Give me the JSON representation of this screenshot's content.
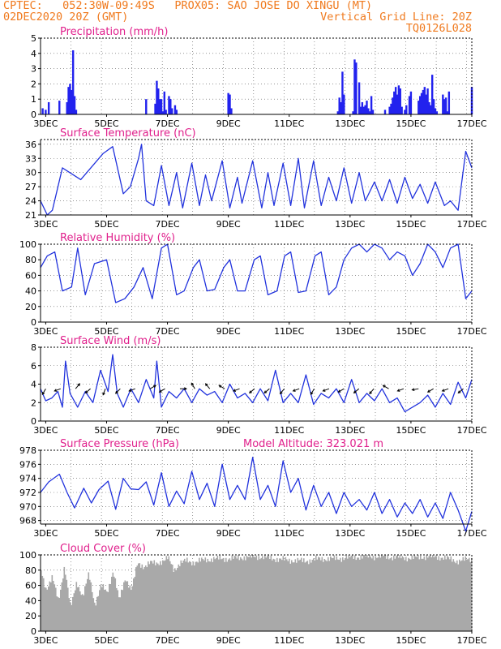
{
  "header": {
    "line1": "CPTEC:   052:30W-09:49S   PROX05: SAO JOSE DO XINGU (MT)",
    "date": "02DEC2020 20Z (GMT)",
    "grid_note": "Vertical Grid Line: 20Z",
    "code": "TQ0126L028"
  },
  "colors": {
    "header": "#f07a1e",
    "title": "#e0208c",
    "line": "#2233dd",
    "bar": "#2222ee",
    "cloud": "#a9a9a9",
    "arrow": "#000000"
  },
  "x_ticks": [
    "3DEC",
    "5DEC",
    "7DEC",
    "9DEC",
    "11DEC",
    "13DEC",
    "15DEC",
    "17DEC"
  ],
  "model_altitude": "Model Altitude: 323.021 m",
  "chart_data": [
    {
      "type": "bar",
      "title": "Precipitation (mm/h)",
      "ylim": [
        0,
        5
      ],
      "yticks": [
        0,
        1,
        2,
        3,
        4,
        5
      ],
      "x_start_day": 2.83,
      "x_end_day": 17.0,
      "x": [
        2.9,
        3.0,
        3.1,
        3.45,
        3.7,
        3.75,
        3.8,
        3.85,
        3.9,
        3.95,
        4.0,
        6.3,
        6.6,
        6.65,
        6.7,
        6.75,
        6.8,
        6.85,
        6.9,
        6.95,
        7.05,
        7.1,
        7.15,
        7.25,
        7.3,
        9.0,
        9.05,
        9.1,
        12.6,
        12.65,
        12.7,
        12.75,
        12.8,
        13.1,
        13.15,
        13.2,
        13.3,
        13.35,
        13.4,
        13.45,
        13.5,
        13.55,
        13.6,
        13.65,
        13.7,
        13.75,
        14.15,
        14.3,
        14.35,
        14.4,
        14.45,
        14.5,
        14.55,
        14.6,
        14.65,
        14.7,
        14.8,
        14.85,
        14.95,
        15.0,
        15.25,
        15.3,
        15.35,
        15.4,
        15.45,
        15.5,
        15.55,
        15.6,
        15.65,
        15.7,
        15.75,
        15.8,
        15.85,
        16.05,
        16.1,
        16.15,
        16.2,
        16.25,
        17.0
      ],
      "values": [
        0.4,
        0.3,
        0.8,
        0.9,
        0.8,
        1.8,
        2.0,
        1.6,
        4.2,
        1.2,
        0.3,
        1.0,
        0.7,
        2.2,
        1.7,
        1.0,
        1.0,
        0.2,
        1.5,
        0.3,
        1.2,
        1.0,
        0.4,
        0.6,
        0.3,
        1.4,
        1.3,
        0.4,
        0.2,
        1.1,
        0.8,
        2.8,
        1.3,
        0.2,
        3.6,
        3.4,
        2.1,
        0.5,
        0.8,
        0.5,
        0.6,
        0.9,
        0.4,
        0.2,
        1.2,
        0.3,
        0.3,
        0.5,
        0.7,
        1.1,
        1.5,
        1.8,
        1.3,
        1.9,
        1.7,
        0.5,
        0.3,
        0.6,
        1.2,
        1.5,
        0.9,
        1.2,
        1.4,
        1.6,
        1.8,
        1.3,
        1.7,
        0.8,
        0.6,
        2.6,
        1.0,
        0.4,
        0.2,
        1.3,
        1.0,
        1.1,
        0.2,
        1.5,
        1.8
      ]
    },
    {
      "type": "line",
      "title": "Surface Temperature (nC)",
      "ylim": [
        21,
        37
      ],
      "yticks": [
        21,
        24,
        27,
        30,
        33,
        36
      ],
      "x_start_day": 2.83,
      "x_end_day": 17.0,
      "x": [
        2.83,
        3.05,
        3.22,
        3.55,
        4.15,
        4.88,
        5.2,
        5.55,
        5.78,
        6.05,
        6.15,
        6.3,
        6.55,
        6.8,
        7.05,
        7.3,
        7.5,
        7.8,
        8.05,
        8.25,
        8.45,
        8.8,
        9.05,
        9.3,
        9.45,
        9.8,
        10.1,
        10.3,
        10.5,
        10.8,
        11.05,
        11.3,
        11.5,
        11.8,
        12.05,
        12.3,
        12.55,
        12.8,
        13.05,
        13.3,
        13.5,
        13.8,
        14.05,
        14.3,
        14.55,
        14.8,
        15.05,
        15.3,
        15.55,
        15.8,
        16.1,
        16.3,
        16.55,
        16.8,
        17.0
      ],
      "values": [
        24,
        21,
        22,
        31,
        28.5,
        34,
        35.5,
        25.5,
        27,
        33,
        36,
        24,
        23,
        31.5,
        23,
        30,
        22.5,
        32,
        23,
        29.5,
        24,
        32.5,
        22.5,
        29,
        23.5,
        32.5,
        22.5,
        30,
        23,
        32,
        23,
        33,
        22.5,
        32.5,
        23,
        29,
        24,
        31,
        23.5,
        30,
        24,
        28,
        24,
        28.5,
        23.5,
        29,
        24.5,
        27.5,
        23.5,
        28,
        23,
        24,
        22,
        34.5,
        31
      ]
    },
    {
      "type": "line",
      "title": "Relative Humidity (%)",
      "ylim": [
        0,
        100
      ],
      "yticks": [
        0,
        20,
        40,
        60,
        80,
        100
      ],
      "x_start_day": 2.83,
      "x_end_day": 17.0,
      "x": [
        2.83,
        3.05,
        3.3,
        3.55,
        3.85,
        4.05,
        4.3,
        4.6,
        5.0,
        5.3,
        5.6,
        5.9,
        6.2,
        6.5,
        6.8,
        7.0,
        7.3,
        7.55,
        7.85,
        8.05,
        8.3,
        8.55,
        8.85,
        9.05,
        9.3,
        9.55,
        9.85,
        10.05,
        10.3,
        10.6,
        10.85,
        11.05,
        11.3,
        11.55,
        11.85,
        12.05,
        12.3,
        12.55,
        12.8,
        13.05,
        13.3,
        13.55,
        13.8,
        14.05,
        14.3,
        14.55,
        14.8,
        15.05,
        15.3,
        15.55,
        15.8,
        16.05,
        16.3,
        16.55,
        16.8,
        17.0
      ],
      "values": [
        70,
        85,
        90,
        40,
        45,
        95,
        35,
        75,
        80,
        25,
        30,
        45,
        70,
        30,
        95,
        100,
        35,
        40,
        70,
        80,
        40,
        42,
        70,
        80,
        40,
        40,
        80,
        85,
        35,
        40,
        85,
        90,
        38,
        40,
        85,
        90,
        35,
        45,
        80,
        95,
        100,
        90,
        100,
        95,
        80,
        90,
        85,
        60,
        75,
        100,
        90,
        70,
        95,
        100,
        30,
        40
      ]
    },
    {
      "type": "line",
      "title": "Surface Wind (m/s)",
      "ylim": [
        0,
        8
      ],
      "yticks": [
        0,
        2,
        4,
        6,
        8
      ],
      "x_start_day": 2.83,
      "x_end_day": 17.0,
      "x": [
        2.83,
        3.0,
        3.2,
        3.4,
        3.55,
        3.65,
        3.8,
        4.05,
        4.3,
        4.55,
        4.8,
        5.05,
        5.2,
        5.35,
        5.55,
        5.8,
        6.05,
        6.3,
        6.55,
        6.65,
        6.8,
        7.05,
        7.3,
        7.55,
        7.8,
        8.05,
        8.3,
        8.55,
        8.8,
        9.05,
        9.3,
        9.55,
        9.8,
        10.05,
        10.3,
        10.55,
        10.8,
        11.05,
        11.3,
        11.55,
        11.8,
        12.05,
        12.3,
        12.55,
        12.8,
        13.05,
        13.3,
        13.55,
        13.8,
        14.05,
        14.3,
        14.55,
        14.8,
        15.05,
        15.3,
        15.55,
        15.8,
        16.05,
        16.3,
        16.55,
        16.8,
        17.0
      ],
      "values": [
        3.5,
        2.2,
        2.5,
        3.2,
        1.5,
        6.5,
        3.0,
        1.5,
        3.2,
        2.0,
        5.5,
        3.2,
        7.2,
        3.0,
        1.5,
        3.5,
        2.0,
        4.5,
        2.5,
        6.5,
        1.5,
        3.2,
        2.5,
        3.5,
        2.0,
        3.5,
        2.8,
        3.2,
        2.0,
        4.0,
        2.5,
        3.0,
        2.0,
        3.5,
        2.2,
        5.5,
        2.0,
        3.0,
        2.0,
        5.0,
        1.8,
        3.0,
        2.5,
        3.5,
        2.0,
        4.5,
        2.0,
        3.0,
        2.2,
        3.5,
        2.0,
        2.5,
        1.0,
        1.5,
        2.0,
        2.8,
        1.5,
        3.0,
        1.8,
        4.2,
        2.5,
        4.5
      ]
    },
    {
      "type": "line",
      "title": "Surface Pressure (hPa)",
      "ylim": [
        967.5,
        978
      ],
      "yticks": [
        968,
        970,
        972,
        974,
        976,
        978
      ],
      "x_start_day": 2.83,
      "x_end_day": 17.0,
      "x": [
        2.83,
        3.1,
        3.45,
        3.7,
        3.95,
        4.25,
        4.5,
        4.75,
        5.05,
        5.3,
        5.55,
        5.8,
        6.05,
        6.3,
        6.55,
        6.8,
        7.05,
        7.3,
        7.55,
        7.8,
        8.05,
        8.3,
        8.55,
        8.8,
        9.05,
        9.3,
        9.55,
        9.8,
        10.05,
        10.3,
        10.55,
        10.8,
        11.05,
        11.3,
        11.55,
        11.8,
        12.05,
        12.3,
        12.55,
        12.8,
        13.05,
        13.3,
        13.55,
        13.8,
        14.05,
        14.3,
        14.55,
        14.8,
        15.05,
        15.3,
        15.55,
        15.8,
        16.05,
        16.3,
        16.55,
        16.8,
        17.0
      ],
      "values": [
        972,
        973.5,
        974.6,
        972,
        969.8,
        972.6,
        970.5,
        972.4,
        973.6,
        969.6,
        974,
        972.5,
        972.4,
        973.5,
        970.2,
        974.8,
        970,
        972.2,
        970.4,
        975,
        971,
        973.3,
        970,
        976,
        971,
        973,
        971,
        977,
        971,
        973,
        970,
        976.5,
        972,
        974,
        969.5,
        973,
        970,
        972,
        969,
        972,
        970,
        971,
        969.5,
        972,
        969,
        971,
        968.5,
        970.5,
        969,
        971,
        968.5,
        970.5,
        968.3,
        972,
        969.5,
        966.5,
        969.3
      ]
    },
    {
      "type": "area",
      "title": "Cloud Cover (%)",
      "ylim": [
        0,
        100
      ],
      "yticks": [
        0,
        20,
        40,
        60,
        80,
        100
      ],
      "x_start_day": 2.83,
      "x_end_day": 17.0,
      "x": [
        2.83,
        3.0,
        3.2,
        3.4,
        3.6,
        3.8,
        4.0,
        4.2,
        4.4,
        4.6,
        4.8,
        5.0,
        5.2,
        5.4,
        5.6,
        5.8,
        6.0,
        6.2,
        6.4,
        6.6,
        6.8,
        7.0,
        7.2,
        7.4,
        7.6,
        7.8,
        8.0,
        8.5,
        9.0,
        9.5,
        10.0,
        10.5,
        11.0,
        11.5,
        12.0,
        12.5,
        13.0,
        13.5,
        14.0,
        14.5,
        15.0,
        15.5,
        16.0,
        16.5,
        17.0
      ],
      "values": [
        80,
        55,
        70,
        40,
        85,
        30,
        65,
        45,
        75,
        35,
        60,
        50,
        80,
        40,
        70,
        55,
        88,
        85,
        90,
        88,
        92,
        96,
        80,
        90,
        92,
        90,
        92,
        95,
        95,
        97,
        98,
        95,
        93,
        92,
        95,
        95,
        97,
        98,
        98,
        97,
        96,
        98,
        97,
        92,
        95
      ]
    }
  ]
}
